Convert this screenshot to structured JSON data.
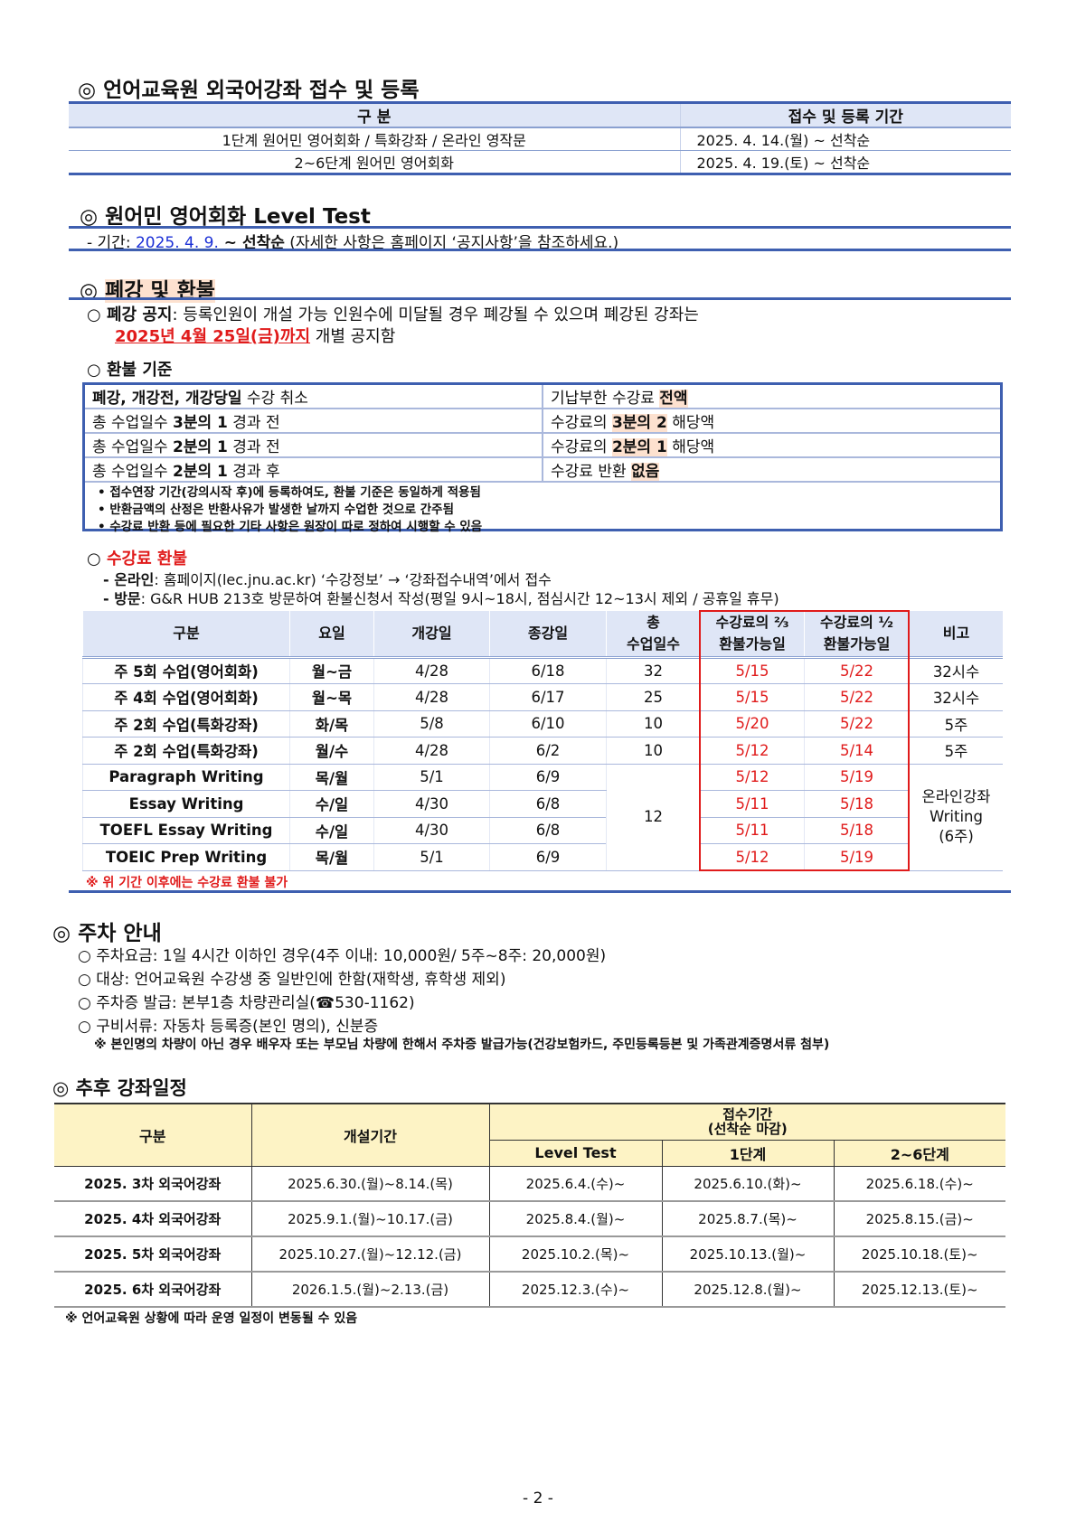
{
  "sec1": {
    "title": "◎ 언어교육원 외국어강좌 접수 및 등록",
    "headers": [
      "구 분",
      "접수 및 등록 기간"
    ],
    "rows": [
      [
        "1단계 원어민 영어회화 / 특화강좌 / 온라인 영작문",
        "2025. 4. 14.(월) ~ 선착순"
      ],
      [
        "2~6단계 원어민 영어회화",
        "2025. 4. 19.(토) ~ 선착순"
      ]
    ]
  },
  "sec2": {
    "title": "◎ 원어민 영어회화 Level Test",
    "prefix": "- 기간: ",
    "date": "2025. 4. 9.",
    "mid": " ~ 선착순",
    "rest": " (자세한 사항은 홈페이지 ‘공지사항’을 참조하세요.)"
  },
  "sec3": {
    "mark": "◎ ",
    "title": "폐강 및 환불",
    "notice_label": "○ 폐강 공지",
    "notice_text": ": 등록인원이 개설 가능 인원수에 미달될 경우 폐강될 수 있으며 폐강된 강좌는",
    "notice_date": "2025년 4월 25일(금)까지",
    "notice_tail": " 개별 공지함",
    "refund_title": "○ 환불 기준",
    "refund_rows": [
      {
        "l1": "폐강, 개강전, 개강당일",
        "l2": " 수강 취소",
        "r1": "기납부한 수강료 ",
        "r2": "전액",
        "r3": ""
      },
      {
        "l1": "총 수업일수 ",
        "l2": "3분의 1",
        "l3": " 경과 전",
        "r1": "수강료의 ",
        "r2": "3분의 2",
        "r3": " 해당액"
      },
      {
        "l1": "총 수업일수 ",
        "l2": "2분의 1",
        "l3": " 경과 전",
        "r1": "수강료의 ",
        "r2": "2분의 1",
        "r3": " 해당액"
      },
      {
        "l1": "총 수업일수 ",
        "l2": "2분의 1",
        "l3": " 경과 후",
        "r1": "수강료 반환 ",
        "r2": "없음",
        "r3": ""
      }
    ],
    "bullets": [
      "• 접수연장 기간(강의시작 후)에 등록하여도, 환불 기준은 동일하게 적용됨",
      "• 반환금액의 산정은 반환사유가 발생한 날까지 수업한 것으로 간주됨",
      "• 수강료 반환 등에 필요한 기타 사항은 원장이 따로 정하여 시행할 수 있음"
    ],
    "fee_refund_circle": "○ ",
    "fee_refund_title": "수강료 환불",
    "online_label": "- 온라인",
    "online_text": ": 홈페이지(lec.jnu.ac.kr) ‘수강정보’ → ‘강좌접수내역’에서 접수",
    "visit_label": "- 방문",
    "visit_text": ": G&R HUB 213호 방문하여 환불신청서 작성(평일 9시~18시, 점심시간 12~13시 제외 / 공휴일 휴무)",
    "table_headers": [
      "구분",
      "요일",
      "개강일",
      "종강일",
      "총\n수업일수",
      "수강료의 ⅔\n환불가능일",
      "수강료의 ½\n환불가능일",
      "비고"
    ],
    "table_rows": [
      [
        "주 5회 수업(영어회화)",
        "월~금",
        "4/28",
        "6/18",
        "32",
        "5/15",
        "5/22",
        "32시수"
      ],
      [
        "주 4회 수업(영어회화)",
        "월~목",
        "4/28",
        "6/17",
        "25",
        "5/15",
        "5/22",
        "32시수"
      ],
      [
        "주 2회 수업(특화강좌)",
        "화/목",
        "5/8",
        "6/10",
        "10",
        "5/20",
        "5/22",
        "5주"
      ],
      [
        "주 2회 수업(특화강좌)",
        "월/수",
        "4/28",
        "6/2",
        "10",
        "5/12",
        "5/14",
        "5주"
      ],
      [
        "Paragraph Writing",
        "목/월",
        "5/1",
        "6/9",
        "12",
        "5/12",
        "5/19",
        "온라인강좌\nWriting\n(6주)"
      ],
      [
        "Essay Writing",
        "수/일",
        "4/30",
        "6/8",
        "",
        "5/11",
        "5/18",
        ""
      ],
      [
        "TOEFL Essay Writing",
        "수/일",
        "4/30",
        "6/8",
        "",
        "5/11",
        "5/18",
        ""
      ],
      [
        "TOEIC Prep Writing",
        "목/월",
        "5/1",
        "6/9",
        "",
        "5/12",
        "5/19",
        ""
      ]
    ],
    "table_note": "※ 위 기간 이후에는 수강료 환불 불가"
  },
  "parking": {
    "title": "◎ 주차 안내",
    "items": [
      "○ 주차요금: 1일 4시간 이하인 경우(4주 이내: 10,000원/ 5주~8주: 20,000원)",
      "○ 대상: 언어교육원 수강생 중 일반인에 한함(재학생, 휴학생 제외)",
      "○ 주차증 발급: 본부1층 차량관리실(☎530-1162)",
      "○ 구비서류: 자동차 등록증(본인 명의), 신분증"
    ],
    "note": "※ 본인명의 차량이 아닌 경우 배우자 또는 부모님 차량에 한해서 주차증 발급가능(건강보험카드, 주민등록등본 및 가족관계증명서류 첨부)"
  },
  "schedule": {
    "title": "◎ 추후 강좌일정",
    "h_cat": "구분",
    "h_period": "개설기간",
    "h_reg": "접수기간",
    "h_reg_sub": "(선착순 마감)",
    "h_sub": [
      "Level Test",
      "1단계",
      "2~6단계"
    ],
    "rows": [
      [
        "2025. 3차 외국어강좌",
        "2025.6.30.(월)~8.14.(목)",
        "2025.6.4.(수)~",
        "2025.6.10.(화)~",
        "2025.6.18.(수)~"
      ],
      [
        "2025. 4차 외국어강좌",
        "2025.9.1.(월)~10.17.(금)",
        "2025.8.4.(월)~",
        "2025.8.7.(목)~",
        "2025.8.15.(금)~"
      ],
      [
        "2025. 5차 외국어강좌",
        "2025.10.27.(월)~12.12.(금)",
        "2025.10.2.(목)~",
        "2025.10.13.(월)~",
        "2025.10.18.(토)~"
      ],
      [
        "2025. 6차 외국어강좌",
        "2026.1.5.(월)~2.13.(금)",
        "2025.12.3.(수)~",
        "2025.12.8.(월)~",
        "2025.12.13.(토)~"
      ]
    ],
    "note": "※ 언어교육원 상황에 따라 운영 일정이 변동될 수 있음"
  },
  "page_number": "- 2 -"
}
